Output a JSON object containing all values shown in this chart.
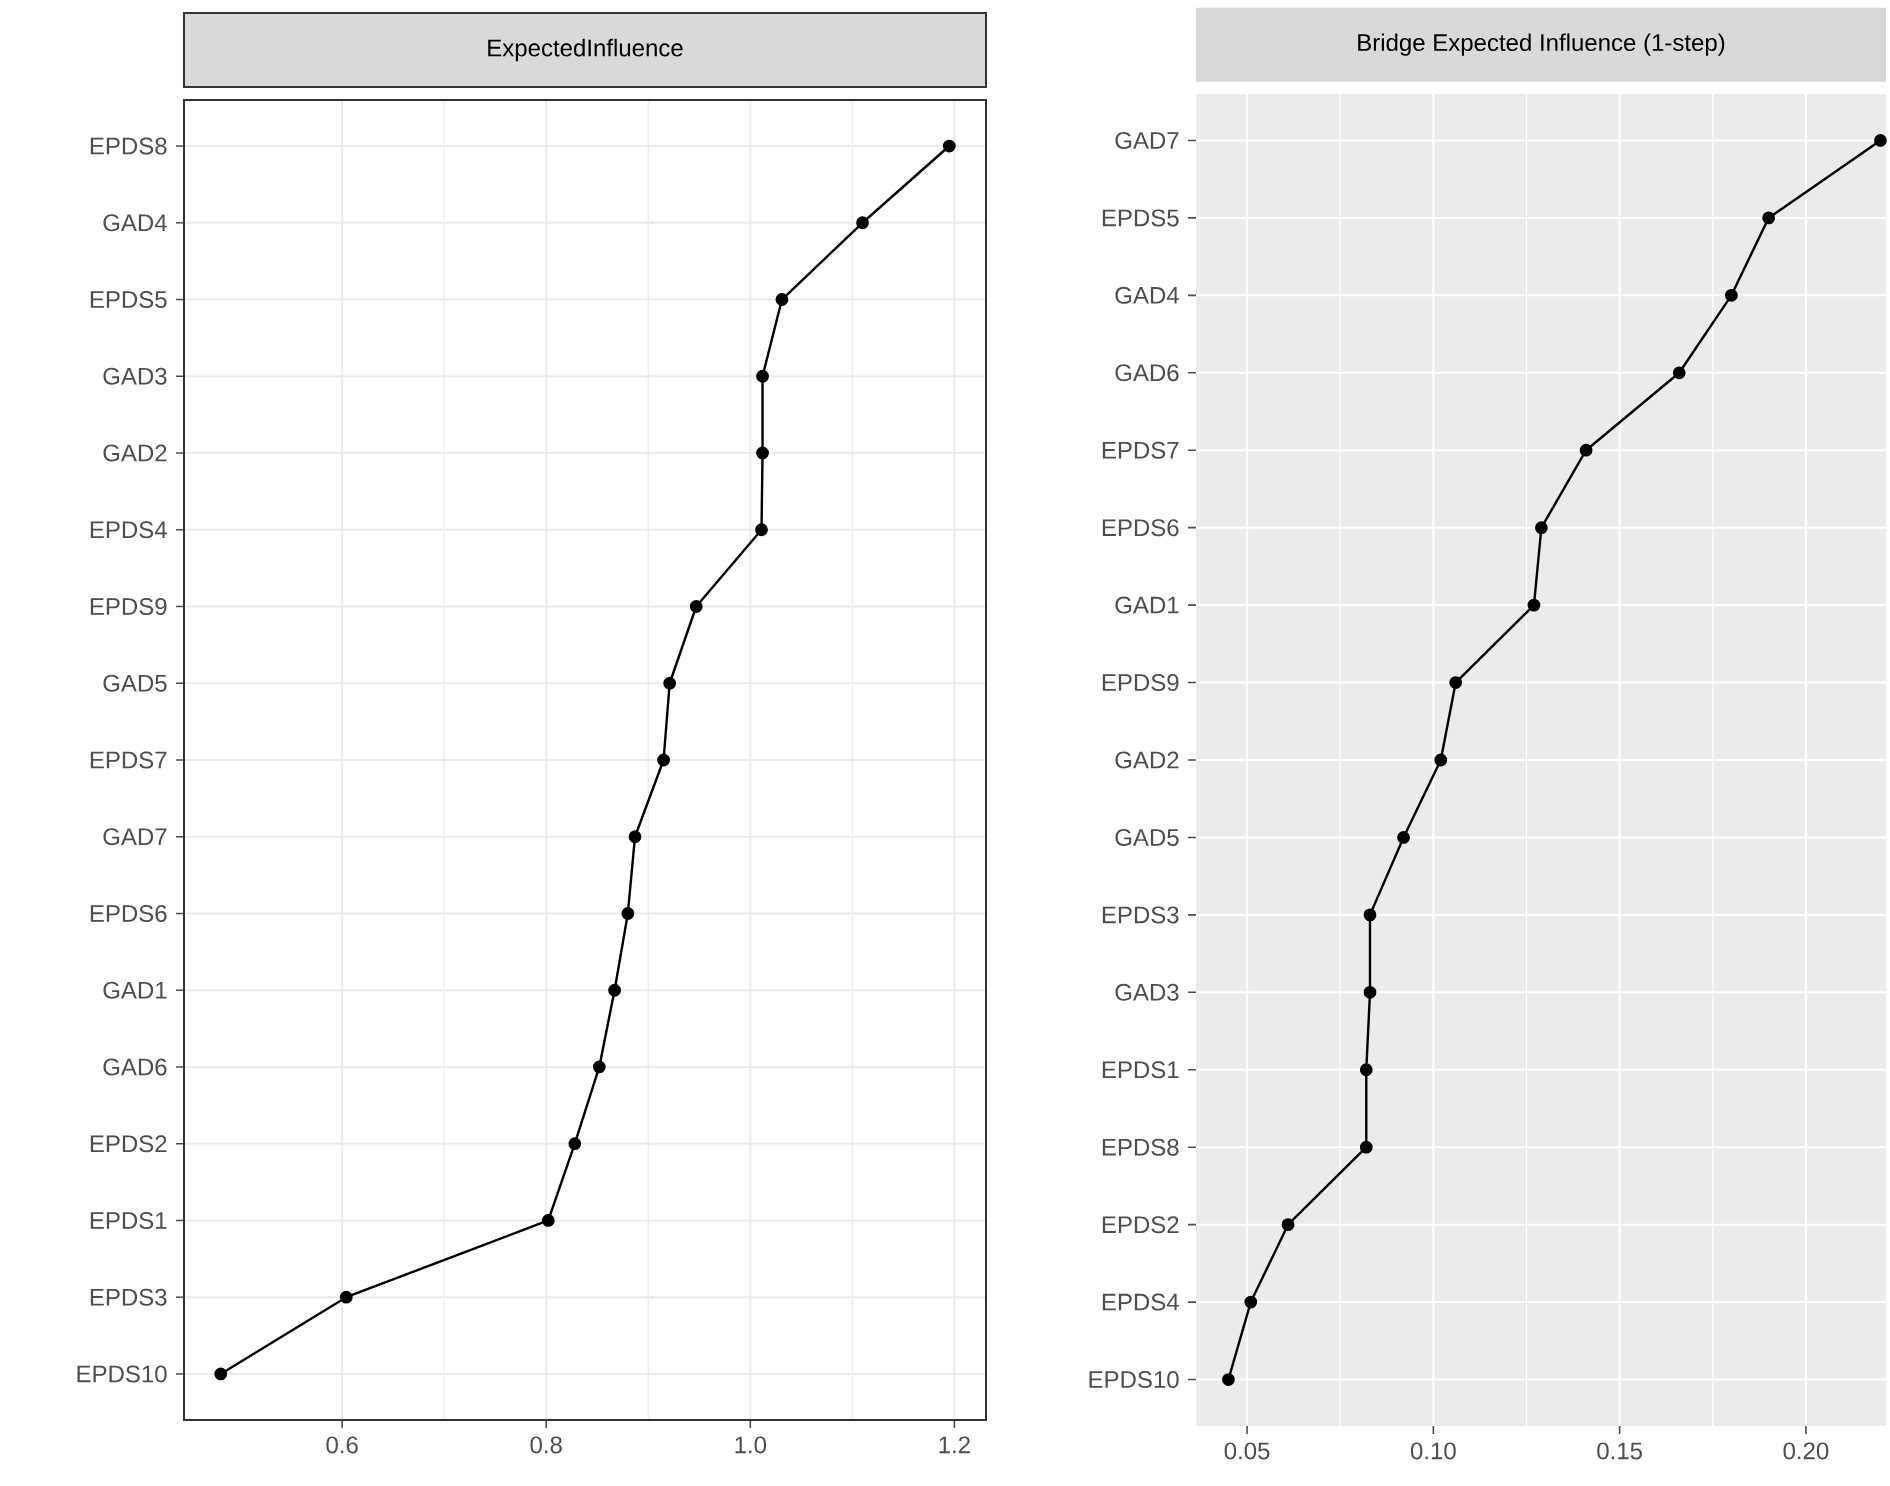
{
  "chart_data": [
    {
      "type": "line",
      "title": "ExpectedInfluence",
      "categories": [
        "EPDS8",
        "GAD4",
        "EPDS5",
        "GAD3",
        "GAD2",
        "EPDS4",
        "EPDS9",
        "GAD5",
        "EPDS7",
        "GAD7",
        "EPDS6",
        "GAD1",
        "GAD6",
        "EPDS2",
        "EPDS1",
        "EPDS3",
        "EPDS10"
      ],
      "orientation": "horizontal",
      "values": [
        1.195,
        1.11,
        1.031,
        1.012,
        1.012,
        1.011,
        0.947,
        0.921,
        0.915,
        0.887,
        0.88,
        0.867,
        0.852,
        0.828,
        0.802,
        0.604,
        0.481
      ],
      "color": "#000000",
      "xlim": [
        0.445,
        1.231
      ],
      "xticks": [
        0.6,
        0.8,
        {
          "value": 1,
          "label": "1.0"
        },
        1.2
      ],
      "grid": true,
      "marker": "circle",
      "line_style": "solid"
    },
    {
      "type": "line",
      "title": "Bridge Expected Influence (1-step)",
      "categories": [
        "GAD7",
        "EPDS5",
        "GAD4",
        "GAD6",
        "EPDS7",
        "EPDS6",
        "GAD1",
        "EPDS9",
        "GAD2",
        "GAD5",
        "EPDS3",
        "GAD3",
        "EPDS1",
        "EPDS8",
        "EPDS2",
        "EPDS4",
        "EPDS10"
      ],
      "orientation": "horizontal",
      "values": [
        0.22,
        0.19,
        0.18,
        0.166,
        0.141,
        0.129,
        0.127,
        0.106,
        0.102,
        0.092,
        0.083,
        0.083,
        0.082,
        0.082,
        0.061,
        0.051,
        0.045
      ],
      "color": "#000000",
      "xlim": [
        0.0363,
        0.2215
      ],
      "xticks": [
        0.05,
        {
          "value": 0.1,
          "label": "0.10"
        },
        0.15,
        {
          "value": 0.2,
          "label": "0.20"
        }
      ],
      "grid": true,
      "marker": "circle",
      "line_style": "solid"
    }
  ]
}
